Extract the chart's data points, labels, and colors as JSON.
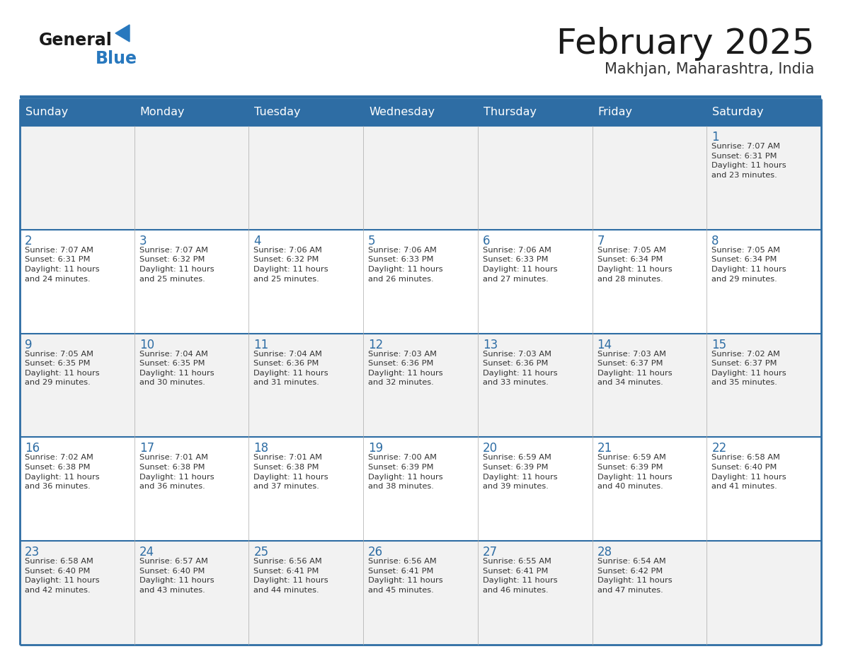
{
  "title": "February 2025",
  "subtitle": "Makhjan, Maharashtra, India",
  "header_bg": "#2E6DA4",
  "header_text": "#FFFFFF",
  "cell_bg_odd": "#F2F2F2",
  "cell_bg_even": "#FFFFFF",
  "title_color": "#1a1a1a",
  "subtitle_color": "#333333",
  "date_color": "#2E6DA4",
  "info_color": "#333333",
  "row_border_color": "#2E6DA4",
  "col_border_color": "#AAAAAA",
  "logo_general_color": "#1a1a1a",
  "logo_blue_color": "#2878BE",
  "day_headers": [
    "Sunday",
    "Monday",
    "Tuesday",
    "Wednesday",
    "Thursday",
    "Friday",
    "Saturday"
  ],
  "calendar_data": [
    [
      {
        "day": null,
        "info": ""
      },
      {
        "day": null,
        "info": ""
      },
      {
        "day": null,
        "info": ""
      },
      {
        "day": null,
        "info": ""
      },
      {
        "day": null,
        "info": ""
      },
      {
        "day": null,
        "info": ""
      },
      {
        "day": 1,
        "info": "Sunrise: 7:07 AM\nSunset: 6:31 PM\nDaylight: 11 hours\nand 23 minutes."
      }
    ],
    [
      {
        "day": 2,
        "info": "Sunrise: 7:07 AM\nSunset: 6:31 PM\nDaylight: 11 hours\nand 24 minutes."
      },
      {
        "day": 3,
        "info": "Sunrise: 7:07 AM\nSunset: 6:32 PM\nDaylight: 11 hours\nand 25 minutes."
      },
      {
        "day": 4,
        "info": "Sunrise: 7:06 AM\nSunset: 6:32 PM\nDaylight: 11 hours\nand 25 minutes."
      },
      {
        "day": 5,
        "info": "Sunrise: 7:06 AM\nSunset: 6:33 PM\nDaylight: 11 hours\nand 26 minutes."
      },
      {
        "day": 6,
        "info": "Sunrise: 7:06 AM\nSunset: 6:33 PM\nDaylight: 11 hours\nand 27 minutes."
      },
      {
        "day": 7,
        "info": "Sunrise: 7:05 AM\nSunset: 6:34 PM\nDaylight: 11 hours\nand 28 minutes."
      },
      {
        "day": 8,
        "info": "Sunrise: 7:05 AM\nSunset: 6:34 PM\nDaylight: 11 hours\nand 29 minutes."
      }
    ],
    [
      {
        "day": 9,
        "info": "Sunrise: 7:05 AM\nSunset: 6:35 PM\nDaylight: 11 hours\nand 29 minutes."
      },
      {
        "day": 10,
        "info": "Sunrise: 7:04 AM\nSunset: 6:35 PM\nDaylight: 11 hours\nand 30 minutes."
      },
      {
        "day": 11,
        "info": "Sunrise: 7:04 AM\nSunset: 6:36 PM\nDaylight: 11 hours\nand 31 minutes."
      },
      {
        "day": 12,
        "info": "Sunrise: 7:03 AM\nSunset: 6:36 PM\nDaylight: 11 hours\nand 32 minutes."
      },
      {
        "day": 13,
        "info": "Sunrise: 7:03 AM\nSunset: 6:36 PM\nDaylight: 11 hours\nand 33 minutes."
      },
      {
        "day": 14,
        "info": "Sunrise: 7:03 AM\nSunset: 6:37 PM\nDaylight: 11 hours\nand 34 minutes."
      },
      {
        "day": 15,
        "info": "Sunrise: 7:02 AM\nSunset: 6:37 PM\nDaylight: 11 hours\nand 35 minutes."
      }
    ],
    [
      {
        "day": 16,
        "info": "Sunrise: 7:02 AM\nSunset: 6:38 PM\nDaylight: 11 hours\nand 36 minutes."
      },
      {
        "day": 17,
        "info": "Sunrise: 7:01 AM\nSunset: 6:38 PM\nDaylight: 11 hours\nand 36 minutes."
      },
      {
        "day": 18,
        "info": "Sunrise: 7:01 AM\nSunset: 6:38 PM\nDaylight: 11 hours\nand 37 minutes."
      },
      {
        "day": 19,
        "info": "Sunrise: 7:00 AM\nSunset: 6:39 PM\nDaylight: 11 hours\nand 38 minutes."
      },
      {
        "day": 20,
        "info": "Sunrise: 6:59 AM\nSunset: 6:39 PM\nDaylight: 11 hours\nand 39 minutes."
      },
      {
        "day": 21,
        "info": "Sunrise: 6:59 AM\nSunset: 6:39 PM\nDaylight: 11 hours\nand 40 minutes."
      },
      {
        "day": 22,
        "info": "Sunrise: 6:58 AM\nSunset: 6:40 PM\nDaylight: 11 hours\nand 41 minutes."
      }
    ],
    [
      {
        "day": 23,
        "info": "Sunrise: 6:58 AM\nSunset: 6:40 PM\nDaylight: 11 hours\nand 42 minutes."
      },
      {
        "day": 24,
        "info": "Sunrise: 6:57 AM\nSunset: 6:40 PM\nDaylight: 11 hours\nand 43 minutes."
      },
      {
        "day": 25,
        "info": "Sunrise: 6:56 AM\nSunset: 6:41 PM\nDaylight: 11 hours\nand 44 minutes."
      },
      {
        "day": 26,
        "info": "Sunrise: 6:56 AM\nSunset: 6:41 PM\nDaylight: 11 hours\nand 45 minutes."
      },
      {
        "day": 27,
        "info": "Sunrise: 6:55 AM\nSunset: 6:41 PM\nDaylight: 11 hours\nand 46 minutes."
      },
      {
        "day": 28,
        "info": "Sunrise: 6:54 AM\nSunset: 6:42 PM\nDaylight: 11 hours\nand 47 minutes."
      },
      {
        "day": null,
        "info": ""
      }
    ]
  ]
}
